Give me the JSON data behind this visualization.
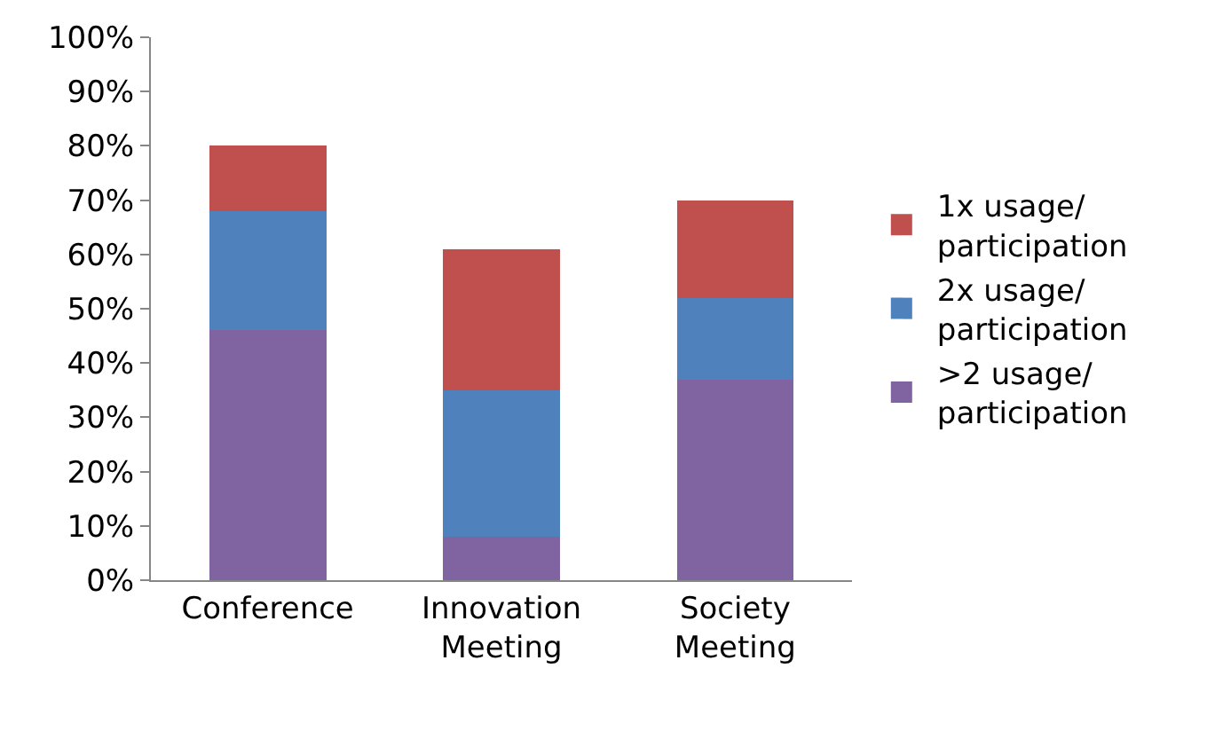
{
  "chart_data": {
    "type": "bar",
    "stacked": true,
    "categories": [
      "Conference",
      "Innovation Meeting",
      "Society Meeting"
    ],
    "series": [
      {
        "name": ">2 usage/ participation",
        "color": "#8064a2",
        "values": [
          46,
          8,
          37
        ]
      },
      {
        "name": "2x usage/ participation",
        "color": "#4f81bd",
        "values": [
          22,
          27,
          15
        ]
      },
      {
        "name": "1x usage/ participation",
        "color": "#c0504d",
        "values": [
          12,
          26,
          18
        ]
      }
    ],
    "ylim": [
      0,
      100
    ],
    "yticks": [
      {
        "value": 0,
        "label": "0%"
      },
      {
        "value": 10,
        "label": "10%"
      },
      {
        "value": 20,
        "label": "20%"
      },
      {
        "value": 30,
        "label": "30%"
      },
      {
        "value": 40,
        "label": "40%"
      },
      {
        "value": 50,
        "label": "50%"
      },
      {
        "value": 60,
        "label": "60%"
      },
      {
        "value": 70,
        "label": "70%"
      },
      {
        "value": 80,
        "label": "80%"
      },
      {
        "value": 90,
        "label": "90%"
      },
      {
        "value": 100,
        "label": "100%"
      }
    ],
    "grid": false,
    "legend": "right"
  }
}
